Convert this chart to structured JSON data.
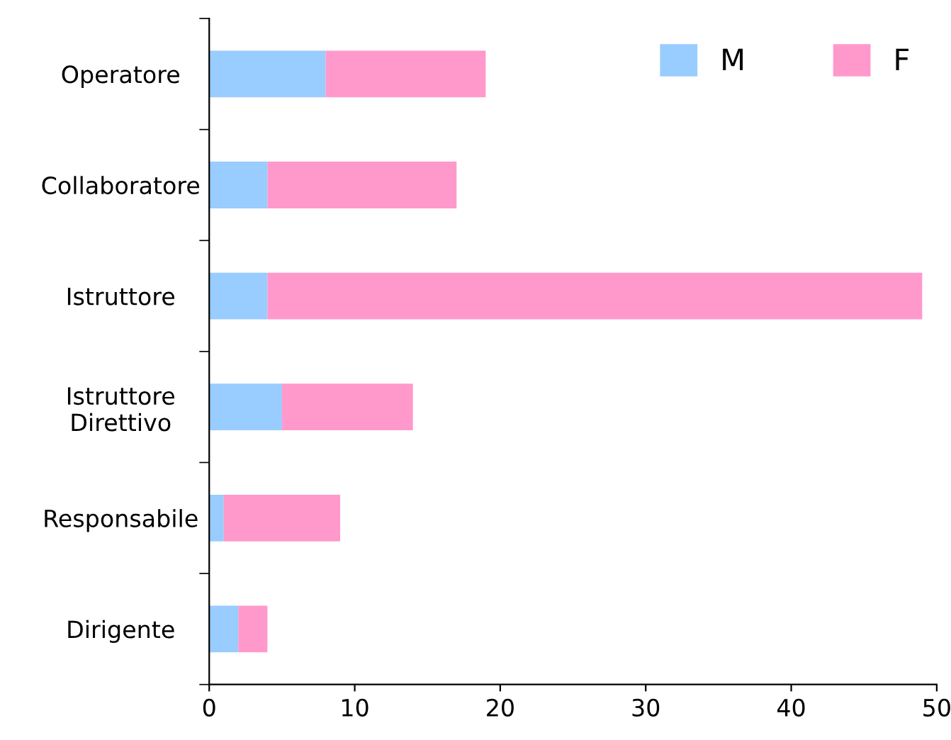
{
  "chart_data": {
    "type": "bar",
    "orientation": "horizontal",
    "stacked": true,
    "categories": [
      "Operatore",
      "Collaboratore",
      "Istruttore",
      "Istruttore\nDirettivo",
      "Responsabile",
      "Dirigente"
    ],
    "series": [
      {
        "name": "M",
        "color": "#99ccff",
        "values": [
          8,
          4,
          4,
          5,
          1,
          2
        ]
      },
      {
        "name": "F",
        "color": "#ff99cc",
        "values": [
          11,
          13,
          45,
          9,
          8,
          2
        ]
      }
    ],
    "xlim": [
      0,
      50
    ],
    "xticks": [
      0,
      10,
      20,
      30,
      40,
      50
    ],
    "grid": false,
    "legend": "top right"
  }
}
